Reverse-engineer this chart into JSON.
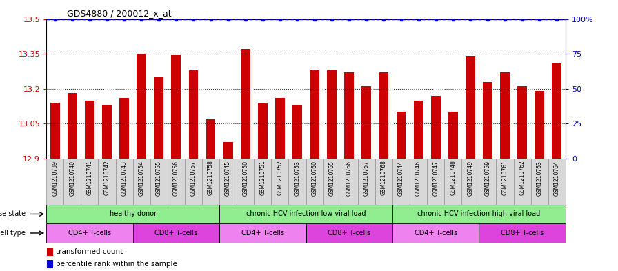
{
  "title": "GDS4880 / 200012_x_at",
  "samples": [
    "GSM1210739",
    "GSM1210740",
    "GSM1210741",
    "GSM1210742",
    "GSM1210743",
    "GSM1210754",
    "GSM1210755",
    "GSM1210756",
    "GSM1210757",
    "GSM1210758",
    "GSM1210745",
    "GSM1210750",
    "GSM1210751",
    "GSM1210752",
    "GSM1210753",
    "GSM1210760",
    "GSM1210765",
    "GSM1210766",
    "GSM1210767",
    "GSM1210768",
    "GSM1210744",
    "GSM1210746",
    "GSM1210747",
    "GSM1210748",
    "GSM1210749",
    "GSM1210759",
    "GSM1210761",
    "GSM1210762",
    "GSM1210763",
    "GSM1210764"
  ],
  "values": [
    13.14,
    13.18,
    13.15,
    13.13,
    13.16,
    13.35,
    13.25,
    13.345,
    13.28,
    13.07,
    12.97,
    13.37,
    13.14,
    13.16,
    13.13,
    13.28,
    13.28,
    13.27,
    13.21,
    13.27,
    13.1,
    13.15,
    13.17,
    13.1,
    13.34,
    13.23,
    13.27,
    13.21,
    13.19,
    13.31
  ],
  "ylim": [
    12.9,
    13.5
  ],
  "yticks": [
    12.9,
    13.05,
    13.2,
    13.35,
    13.5
  ],
  "ytick_labels": [
    "12.9",
    "13.05",
    "13.2",
    "13.35",
    "13.5"
  ],
  "right_yticks": [
    0,
    25,
    50,
    75,
    100
  ],
  "right_ytick_labels": [
    "0",
    "25",
    "50",
    "75",
    "100%"
  ],
  "bar_color": "#cc0000",
  "dot_color": "#0000cc",
  "bg_color": "#d8d8d8",
  "ds_color": "#90ee90",
  "cd4_color": "#ee82ee",
  "cd8_color": "#ee82ee",
  "disease_states": [
    {
      "label": "healthy donor",
      "start": 0,
      "end": 10
    },
    {
      "label": "chronic HCV infection-low viral load",
      "start": 10,
      "end": 20
    },
    {
      "label": "chronic HCV infection-high viral load",
      "start": 20,
      "end": 30
    }
  ],
  "cell_types": [
    {
      "label": "CD4+ T-cells",
      "start": 0,
      "end": 5
    },
    {
      "label": "CD8+ T-cells",
      "start": 5,
      "end": 10
    },
    {
      "label": "CD4+ T-cells",
      "start": 10,
      "end": 15
    },
    {
      "label": "CD8+ T-cells",
      "start": 15,
      "end": 20
    },
    {
      "label": "CD4+ T-cells",
      "start": 20,
      "end": 25
    },
    {
      "label": "CD8+ T-cells",
      "start": 25,
      "end": 30
    }
  ],
  "disease_state_label": "disease state",
  "cell_type_label": "cell type",
  "legend_bar_label": "transformed count",
  "legend_dot_label": "percentile rank within the sample"
}
